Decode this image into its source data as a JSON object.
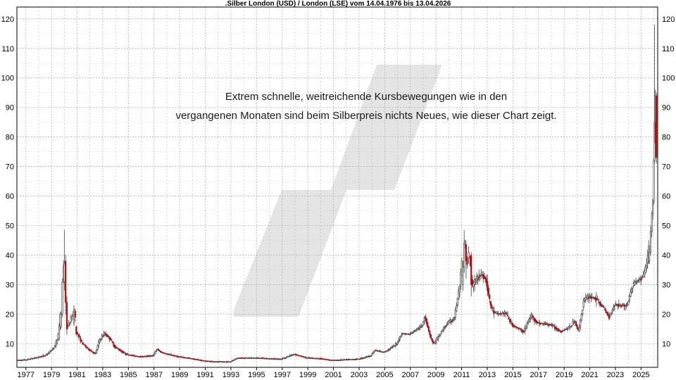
{
  "chart_data": {
    "type": "candlestick",
    "title": ".Silber London (USD) / London (LSE) vom 14.04.1976 bis 13.04.2026",
    "annotation_lines": [
      "Extrem schnelle, weitreichende Kursbewegungen wie in den",
      "vergangenen Monaten sind beim Silberpreis nichts Neues, wie dieser Chart zeigt."
    ],
    "x_range": [
      1976.3,
      2026.3
    ],
    "y_range": [
      2,
      124
    ],
    "x_tick_labels": [
      "1977",
      "1979",
      "1981",
      "1983",
      "1985",
      "1987",
      "1989",
      "1991",
      "1993",
      "1995",
      "1997",
      "1999",
      "2001",
      "2003",
      "2005",
      "2007",
      "2009",
      "2011",
      "2013",
      "2015",
      "2017",
      "2019",
      "2021",
      "2023",
      "2025"
    ],
    "y_tick_labels": [
      "10",
      "20",
      "30",
      "40",
      "50",
      "60",
      "70",
      "80",
      "90",
      "100",
      "110",
      "120"
    ],
    "grid": true,
    "colors": {
      "up": "#ffffff",
      "down": "#b01010",
      "wick": "#404040",
      "grid": "#a8a8a8",
      "watermark": "#e4e4e4"
    },
    "price_path": [
      [
        1976.3,
        4.4
      ],
      [
        1977.0,
        4.5
      ],
      [
        1978.0,
        5.4
      ],
      [
        1978.6,
        6.1
      ],
      [
        1979.0,
        7.5
      ],
      [
        1979.35,
        9.3
      ],
      [
        1979.5,
        11.0
      ],
      [
        1979.7,
        16.0
      ],
      [
        1979.85,
        25.0
      ],
      [
        1980.0,
        37.0
      ],
      [
        1980.08,
        35.5
      ],
      [
        1980.15,
        25.0
      ],
      [
        1980.25,
        15.5
      ],
      [
        1980.5,
        17.0
      ],
      [
        1980.75,
        20.5
      ],
      [
        1981.0,
        14.0
      ],
      [
        1981.5,
        10.0
      ],
      [
        1982.0,
        8.0
      ],
      [
        1982.5,
        6.5
      ],
      [
        1982.8,
        11.0
      ],
      [
        1983.2,
        13.5
      ],
      [
        1983.6,
        12.0
      ],
      [
        1984.0,
        9.0
      ],
      [
        1984.5,
        7.5
      ],
      [
        1985.0,
        6.3
      ],
      [
        1986.0,
        5.6
      ],
      [
        1987.0,
        6.0
      ],
      [
        1987.3,
        8.2
      ],
      [
        1987.6,
        7.2
      ],
      [
        1988.0,
        6.6
      ],
      [
        1989.0,
        5.6
      ],
      [
        1990.0,
        5.0
      ],
      [
        1991.0,
        4.2
      ],
      [
        1992.0,
        3.9
      ],
      [
        1993.0,
        3.9
      ],
      [
        1993.6,
        5.2
      ],
      [
        1994.0,
        5.2
      ],
      [
        1995.0,
        5.2
      ],
      [
        1996.0,
        5.0
      ],
      [
        1997.0,
        4.8
      ],
      [
        1998.0,
        6.5
      ],
      [
        1999.0,
        5.2
      ],
      [
        2000.0,
        5.0
      ],
      [
        2001.0,
        4.4
      ],
      [
        2002.0,
        4.6
      ],
      [
        2003.0,
        4.8
      ],
      [
        2004.0,
        6.0
      ],
      [
        2004.3,
        7.8
      ],
      [
        2005.0,
        7.1
      ],
      [
        2006.0,
        9.8
      ],
      [
        2006.4,
        13.5
      ],
      [
        2007.0,
        13.2
      ],
      [
        2008.0,
        16.0
      ],
      [
        2008.2,
        19.5
      ],
      [
        2008.7,
        11.5
      ],
      [
        2008.9,
        10.0
      ],
      [
        2009.5,
        14.0
      ],
      [
        2010.0,
        17.0
      ],
      [
        2010.5,
        18.5
      ],
      [
        2010.9,
        28.5
      ],
      [
        2011.3,
        45.0
      ],
      [
        2011.5,
        36.0
      ],
      [
        2011.7,
        40.0
      ],
      [
        2011.9,
        29.0
      ],
      [
        2012.3,
        32.5
      ],
      [
        2012.7,
        33.5
      ],
      [
        2013.0,
        31.5
      ],
      [
        2013.3,
        23.5
      ],
      [
        2013.6,
        20.5
      ],
      [
        2014.0,
        20.0
      ],
      [
        2014.5,
        20.5
      ],
      [
        2015.0,
        16.5
      ],
      [
        2015.9,
        14.0
      ],
      [
        2016.5,
        19.5
      ],
      [
        2017.0,
        17.0
      ],
      [
        2018.0,
        16.5
      ],
      [
        2018.8,
        14.2
      ],
      [
        2019.5,
        15.5
      ],
      [
        2019.9,
        17.8
      ],
      [
        2020.2,
        14.0
      ],
      [
        2020.6,
        24.5
      ],
      [
        2021.0,
        26.0
      ],
      [
        2021.5,
        25.5
      ],
      [
        2022.0,
        23.0
      ],
      [
        2022.6,
        19.0
      ],
      [
        2023.0,
        23.5
      ],
      [
        2023.5,
        23.0
      ],
      [
        2024.0,
        23.0
      ],
      [
        2024.4,
        29.5
      ],
      [
        2024.8,
        31.5
      ],
      [
        2025.0,
        32.0
      ],
      [
        2025.3,
        33.0
      ],
      [
        2025.45,
        36.0
      ],
      [
        2025.55,
        38.0
      ],
      [
        2025.65,
        40.0
      ],
      [
        2025.75,
        47.0
      ],
      [
        2025.85,
        53.0
      ],
      [
        2025.95,
        64.0
      ],
      [
        2026.05,
        85.0
      ],
      [
        2026.15,
        94.0
      ],
      [
        2026.25,
        77.0
      ]
    ],
    "candles": [
      {
        "t": 1979.6,
        "o": 12.0,
        "h": 17.0,
        "l": 11.0,
        "c": 16.0
      },
      {
        "t": 1979.75,
        "o": 16.0,
        "h": 21.0,
        "l": 15.0,
        "c": 20.0
      },
      {
        "t": 1979.85,
        "o": 20.0,
        "h": 32.0,
        "l": 19.0,
        "c": 31.0
      },
      {
        "t": 1980.0,
        "o": 31.0,
        "h": 48.5,
        "l": 28.0,
        "c": 37.0
      },
      {
        "t": 1980.1,
        "o": 38.0,
        "h": 40.0,
        "l": 20.0,
        "c": 24.0
      },
      {
        "t": 1980.2,
        "o": 24.0,
        "h": 26.0,
        "l": 13.0,
        "c": 15.0
      },
      {
        "t": 1980.75,
        "o": 17.0,
        "h": 23.0,
        "l": 16.0,
        "c": 21.5
      },
      {
        "t": 1980.85,
        "o": 21.0,
        "h": 22.0,
        "l": 17.5,
        "c": 19.0
      },
      {
        "t": 2011.1,
        "o": 30.0,
        "h": 38.0,
        "l": 28.0,
        "c": 36.0
      },
      {
        "t": 2011.2,
        "o": 36.0,
        "h": 48.5,
        "l": 34.0,
        "c": 44.0
      },
      {
        "t": 2011.35,
        "o": 43.5,
        "h": 45.0,
        "l": 32.0,
        "c": 38.0
      },
      {
        "t": 2011.55,
        "o": 39.0,
        "h": 43.0,
        "l": 37.0,
        "c": 41.0
      },
      {
        "t": 2011.75,
        "o": 40.0,
        "h": 41.0,
        "l": 26.0,
        "c": 30.0
      },
      {
        "t": 2025.65,
        "o": 38.0,
        "h": 43.0,
        "l": 37.0,
        "c": 41.0
      },
      {
        "t": 2025.75,
        "o": 41.0,
        "h": 50.0,
        "l": 40.0,
        "c": 48.0
      },
      {
        "t": 2025.85,
        "o": 48.0,
        "h": 55.0,
        "l": 46.0,
        "c": 54.0
      },
      {
        "t": 2025.92,
        "o": 54.0,
        "h": 59.0,
        "l": 52.0,
        "c": 58.0
      },
      {
        "t": 2026.0,
        "o": 58.0,
        "h": 73.0,
        "l": 57.0,
        "c": 72.0
      },
      {
        "t": 2026.06,
        "o": 72.0,
        "h": 118.0,
        "l": 71.0,
        "c": 85.0
      },
      {
        "t": 2026.12,
        "o": 85.0,
        "h": 96.0,
        "l": 73.0,
        "c": 78.0
      },
      {
        "t": 2026.2,
        "o": 94.0,
        "h": 95.0,
        "l": 71.0,
        "c": 73.0
      }
    ]
  }
}
